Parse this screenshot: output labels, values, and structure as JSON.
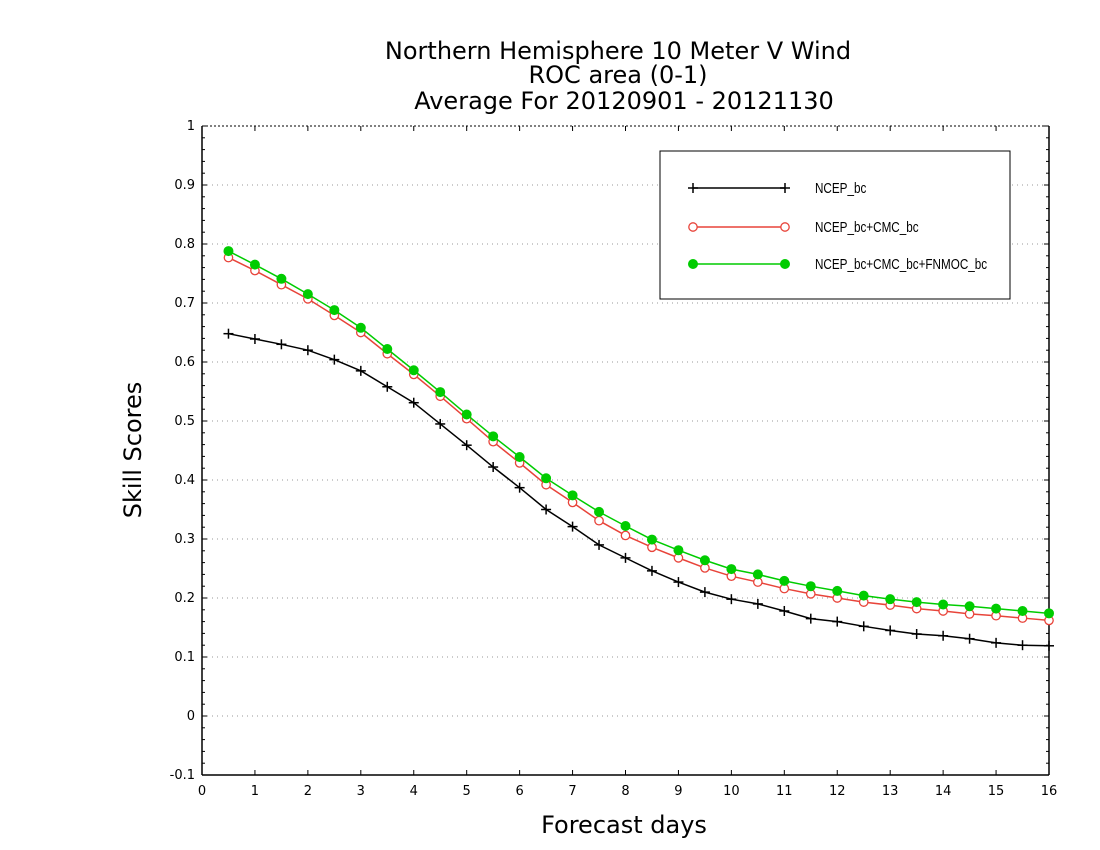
{
  "chart_data": {
    "type": "line",
    "title": [
      "Northern Hemisphere 10 Meter V Wind",
      "ROC area (0-1)",
      "Average For 20120901 - 20121130"
    ],
    "xlabel": "Forecast days",
    "ylabel": "Skill Scores",
    "xlim": [
      0,
      16
    ],
    "ylim": [
      -0.1,
      1
    ],
    "xticks": [
      "0",
      "1",
      "2",
      "3",
      "4",
      "5",
      "6",
      "7",
      "8",
      "9",
      "10",
      "11",
      "12",
      "13",
      "14",
      "15",
      "16"
    ],
    "yticks": [
      "-0.1",
      "0",
      "0.1",
      "0.2",
      "0.3",
      "0.4",
      "0.5",
      "0.6",
      "0.7",
      "0.8",
      "0.9",
      "1"
    ],
    "grid": true,
    "legend_position": "top-right",
    "x": [
      0.5,
      1,
      1.5,
      2,
      2.5,
      3,
      3.5,
      4,
      4.5,
      5,
      5.5,
      6,
      6.5,
      7,
      7.5,
      8,
      8.5,
      9,
      9.5,
      10,
      10.5,
      11,
      11.5,
      12,
      12.5,
      13,
      13.5,
      14,
      14.5,
      15,
      15.5,
      16
    ],
    "series": [
      {
        "name": "NCEP_bc",
        "color": "#000000",
        "marker": "plus",
        "values": [
          0.648,
          0.639,
          0.63,
          0.62,
          0.604,
          0.585,
          0.558,
          0.531,
          0.495,
          0.459,
          0.422,
          0.387,
          0.35,
          0.321,
          0.29,
          0.268,
          0.246,
          0.227,
          0.21,
          0.198,
          0.19,
          0.178,
          0.165,
          0.16,
          0.152,
          0.145,
          0.139,
          0.136,
          0.131,
          0.124,
          0.12,
          0.119
        ]
      },
      {
        "name": "NCEP_bc+CMC_bc",
        "color": "#e8443a",
        "marker": "open-circle",
        "values": [
          0.777,
          0.755,
          0.731,
          0.707,
          0.679,
          0.65,
          0.614,
          0.579,
          0.542,
          0.504,
          0.465,
          0.429,
          0.392,
          0.362,
          0.331,
          0.306,
          0.286,
          0.268,
          0.251,
          0.237,
          0.227,
          0.216,
          0.207,
          0.2,
          0.193,
          0.188,
          0.182,
          0.178,
          0.173,
          0.17,
          0.166,
          0.162
        ]
      },
      {
        "name": "NCEP_bc+CMC_bc+FNMOC_bc",
        "color": "#00cc00",
        "marker": "filled-circle",
        "values": [
          0.788,
          0.765,
          0.741,
          0.715,
          0.688,
          0.658,
          0.622,
          0.586,
          0.549,
          0.511,
          0.474,
          0.439,
          0.403,
          0.374,
          0.346,
          0.322,
          0.299,
          0.281,
          0.264,
          0.249,
          0.24,
          0.229,
          0.22,
          0.212,
          0.204,
          0.198,
          0.193,
          0.189,
          0.186,
          0.182,
          0.178,
          0.174
        ]
      }
    ]
  }
}
